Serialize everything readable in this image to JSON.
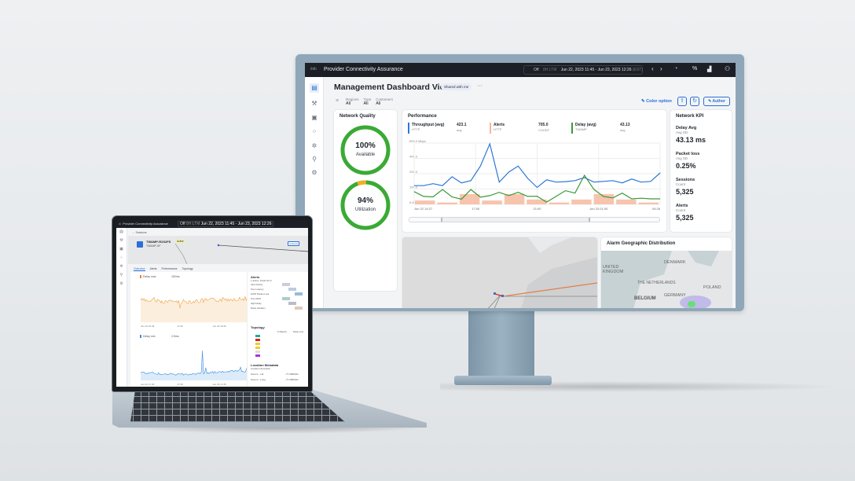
{
  "monitor": {
    "header": {
      "app_title": "Provider Connectivity Assurance",
      "refresh": "Off",
      "range_preset": "8H:LTM",
      "date_range": "Jun 22, 2023 11:45 - Jun 23, 2023 12:26",
      "timezone": "(EST)"
    },
    "page_title": "Management Dashboard View",
    "shared_badge": "Shared with me",
    "more": "···",
    "filters": [
      {
        "label": "Regions",
        "value": "All"
      },
      {
        "label": "Type",
        "value": "All"
      },
      {
        "label": "Customers",
        "value": "All"
      }
    ],
    "actions": {
      "color_option": "Color option",
      "author": "Author"
    },
    "network_quality": {
      "title": "Network Quality",
      "gauges": [
        {
          "value": "100%",
          "label": "Available",
          "fraction": 1.0
        },
        {
          "value": "94%",
          "label": "Utilization",
          "fraction": 0.94
        }
      ],
      "colors": {
        "ok": "#3aaa35",
        "warn": "#f2b01e"
      }
    },
    "performance": {
      "title": "Performance",
      "legend": [
        {
          "name": "Throughput (avg)",
          "value": "423.1",
          "sub": "HTTP",
          "agg": "avg",
          "color": "#2b78d6"
        },
        {
          "name": "Alerts",
          "value": "705.0",
          "sub": "HTTP",
          "agg": "COUNT",
          "color": "#f5b59a"
        },
        {
          "name": "Delay (avg)",
          "value": "43.13",
          "sub": "TWAMP",
          "agg": "avg",
          "color": "#3a9a3a"
        }
      ]
    },
    "network_kpi": {
      "title": "Network KPI",
      "items": [
        {
          "label": "Delay Avg",
          "sub": "Avg SD",
          "value": "43.13 ms"
        },
        {
          "label": "Packet loss",
          "sub": "Avg SD",
          "value": "0.25%"
        },
        {
          "label": "Sessions",
          "sub": "Count",
          "value": "5,325"
        },
        {
          "label": "Alerts",
          "sub": "Count",
          "value": "5,325"
        }
      ]
    },
    "alarm_geo": {
      "title": "Alarm Geographic Distribution",
      "places": [
        "UNITED KINGDOM",
        "DENMARK",
        "THE NETHERLANDS",
        "GERMANY",
        "BELGIUM",
        "POLAND"
      ]
    }
  },
  "chart_data": {
    "type": "line",
    "title": "Performance",
    "y_tick_labels": [
      "6.6",
      "100.0",
      "200.0",
      "400.0",
      "600.0 Mbps"
    ],
    "y_tick_values": [
      6.6,
      100,
      200,
      400,
      600
    ],
    "x_tick_labels": [
      "Jun 22 14:27",
      "17:00",
      "21:00",
      "Jun 23 01:00",
      "04:26"
    ],
    "grid": true,
    "series": [
      {
        "name": "Throughput (avg)",
        "type": "line",
        "color": "#2b78d6",
        "values": [
          122,
          122,
          135,
          122,
          180,
          140,
          155,
          300,
          590,
          145,
          220,
          300,
          170,
          110,
          160,
          145,
          148,
          155,
          175,
          145,
          150,
          155,
          140,
          165,
          145,
          150,
          210
        ]
      },
      {
        "name": "Delay (avg)",
        "type": "line",
        "color": "#3a9a3a",
        "values": [
          84,
          55,
          52,
          97,
          52,
          38,
          97,
          50,
          60,
          80,
          60,
          80,
          55,
          56,
          20,
          55,
          90,
          75,
          190,
          98,
          55,
          46,
          75,
          40,
          44,
          40,
          40
        ]
      },
      {
        "name": "Alerts",
        "type": "bar",
        "color": "#f5b59a",
        "values": [
          30,
          18,
          69,
          30,
          69,
          36,
          18,
          36,
          69,
          36,
          18
        ]
      }
    ]
  },
  "laptop": {
    "header": {
      "app_title": "Provider Connectivity Assurance",
      "refresh": "Off",
      "range_preset": "8H:LTM",
      "date_range": "Jun 22, 2023 11:45 - Jun 23, 2023 12:26"
    },
    "breadcrumb": "Sessions",
    "session_name": "TWAMP-R2S2FS",
    "session_sub": "TWAMP-SF",
    "status": "Active",
    "analysis_btn": "Analysis",
    "tabs": [
      "Overview",
      "Alerts",
      "Performance",
      "Topology"
    ],
    "chart1": {
      "legend": "Delay max",
      "sub": "TWAMP-SF",
      "value": "152ms",
      "x_labels": [
        "Jun 23 15:45",
        "17:45",
        "Jun 23 19:45",
        "07:45",
        "12:26"
      ],
      "color": "#f0a040"
    },
    "chart2": {
      "legend": "Delay min",
      "sub": "TWAMP-SF",
      "value": "2.5ms",
      "x_labels": [
        "Jun 22 17:45",
        "17:45",
        "Jun 23 17:45",
        "07:45",
        "12:26"
      ],
      "color": "#3b8fe0"
    },
    "alerts_panel": {
      "title": "Alerts",
      "sub": "1 active, 8 last 24 hr",
      "rows": [
        "Alert Activity",
        "Poor Latency",
        "100% Packet Loss",
        "Poor MOS",
        "High Delay",
        "Delay Variation"
      ]
    },
    "topology": {
      "title": "Topology",
      "cols": [
        "# Objects",
        "Delay max"
      ]
    },
    "location": {
      "title": "Location Metadata",
      "sub": "Location information",
      "rows": [
        {
          "k": "Source - Lat",
          "v": "-77.0680321"
        },
        {
          "k": "Source - Long",
          "v": "-77.0680321"
        }
      ]
    }
  }
}
